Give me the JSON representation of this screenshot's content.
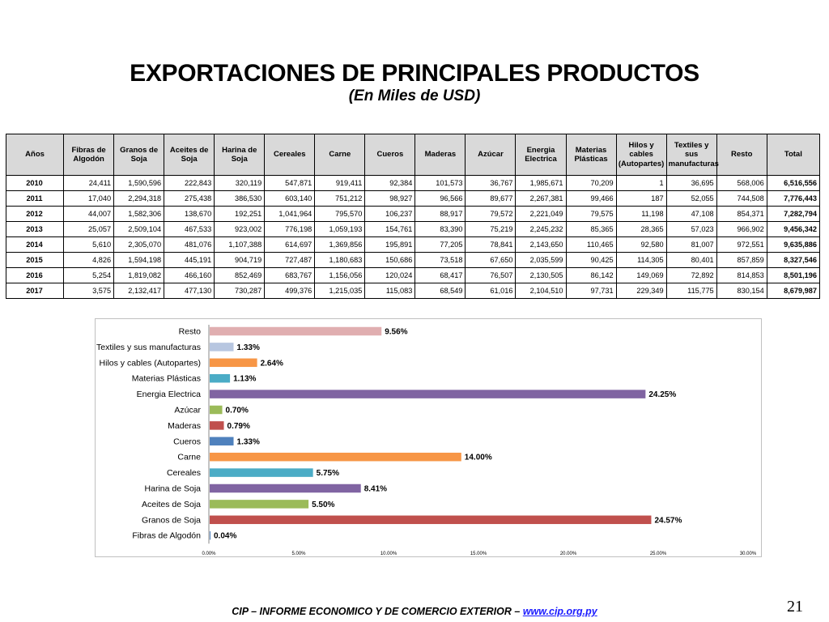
{
  "slide": {
    "title": "EXPORTACIONES DE PRINCIPALES PRODUCTOS",
    "subtitle": "(En Miles de USD)",
    "footer_text": "CIP – INFORME ECONOMICO Y DE COMERCIO EXTERIOR – ",
    "footer_link": "www.cip.org.py",
    "page_number": "21"
  },
  "table": {
    "headers": [
      "Años",
      "Fibras de Algodón",
      "Granos de Soja",
      "Aceites de Soja",
      "Harina de Soja",
      "Cereales",
      "Carne",
      "Cueros",
      "Maderas",
      "Azúcar",
      "Energia Electrica",
      "Materias Plásticas",
      "Hilos y cables (Autopartes)",
      "Textiles y sus manufacturas",
      "Resto",
      "Total"
    ],
    "rows": [
      [
        "2010",
        "24,411",
        "1,590,596",
        "222,843",
        "320,119",
        "547,871",
        "919,411",
        "92,384",
        "101,573",
        "36,767",
        "1,985,671",
        "70,209",
        "1",
        "36,695",
        "568,006",
        "6,516,556"
      ],
      [
        "2011",
        "17,040",
        "2,294,318",
        "275,438",
        "386,530",
        "603,140",
        "751,212",
        "98,927",
        "96,566",
        "89,677",
        "2,267,381",
        "99,466",
        "187",
        "52,055",
        "744,508",
        "7,776,443"
      ],
      [
        "2012",
        "44,007",
        "1,582,306",
        "138,670",
        "192,251",
        "1,041,964",
        "795,570",
        "106,237",
        "88,917",
        "79,572",
        "2,221,049",
        "79,575",
        "11,198",
        "47,108",
        "854,371",
        "7,282,794"
      ],
      [
        "2013",
        "25,057",
        "2,509,104",
        "467,533",
        "923,002",
        "776,198",
        "1,059,193",
        "154,761",
        "83,390",
        "75,219",
        "2,245,232",
        "85,365",
        "28,365",
        "57,023",
        "966,902",
        "9,456,342"
      ],
      [
        "2014",
        "5,610",
        "2,305,070",
        "481,076",
        "1,107,388",
        "614,697",
        "1,369,856",
        "195,891",
        "77,205",
        "78,841",
        "2,143,650",
        "110,465",
        "92,580",
        "81,007",
        "972,551",
        "9,635,886"
      ],
      [
        "2015",
        "4,826",
        "1,594,198",
        "445,191",
        "904,719",
        "727,487",
        "1,180,683",
        "150,686",
        "73,518",
        "67,650",
        "2,035,599",
        "90,425",
        "114,305",
        "80,401",
        "857,859",
        "8,327,546"
      ],
      [
        "2016",
        "5,254",
        "1,819,082",
        "466,160",
        "852,469",
        "683,767",
        "1,156,056",
        "120,024",
        "68,417",
        "76,507",
        "2,130,505",
        "86,142",
        "149,069",
        "72,892",
        "814,853",
        "8,501,196"
      ],
      [
        "2017",
        "3,575",
        "2,132,417",
        "477,130",
        "730,287",
        "499,376",
        "1,215,035",
        "115,083",
        "68,549",
        "61,016",
        "2,104,510",
        "97,731",
        "229,349",
        "115,775",
        "830,154",
        "8,679,987"
      ]
    ]
  },
  "chart_data": {
    "type": "bar",
    "orientation": "horizontal",
    "categories": [
      "Fibras de Algodón",
      "Granos de Soja",
      "Aceites de Soja",
      "Harina de Soja",
      "Cereales",
      "Carne",
      "Cueros",
      "Maderas",
      "Azúcar",
      "Energia Electrica",
      "Materias Plásticas",
      "Hilos y cables (Autopartes)",
      "Textiles y sus manufacturas",
      "Resto"
    ],
    "values": [
      0.04,
      24.57,
      5.5,
      8.41,
      5.75,
      14.0,
      1.33,
      0.79,
      0.7,
      24.25,
      1.13,
      2.64,
      1.33,
      9.56
    ],
    "data_labels": [
      "0.04%",
      "24.57%",
      "5.50%",
      "8.41%",
      "5.75%",
      "14.00%",
      "1.33%",
      "0.79%",
      "0.70%",
      "24.25%",
      "1.13%",
      "2.64%",
      "1.33%",
      "9.56%"
    ],
    "colors": [
      "#4f81bd",
      "#c0504d",
      "#9bbb59",
      "#8064a2",
      "#4bacc6",
      "#f79646",
      "#4f81bd",
      "#c0504d",
      "#9bbb59",
      "#8064a2",
      "#4bacc6",
      "#f79646",
      "#b7c6e0",
      "#e0aeb0"
    ],
    "xlim": [
      0,
      30
    ],
    "xticks": [
      "0.00%",
      "5.00%",
      "10.00%",
      "15.00%",
      "20.00%",
      "25.00%",
      "30.00%"
    ],
    "xtick_values": [
      0,
      5,
      10,
      15,
      20,
      25,
      30
    ],
    "grid": false,
    "legend": "none",
    "title": "",
    "xlabel": "",
    "ylabel": ""
  }
}
